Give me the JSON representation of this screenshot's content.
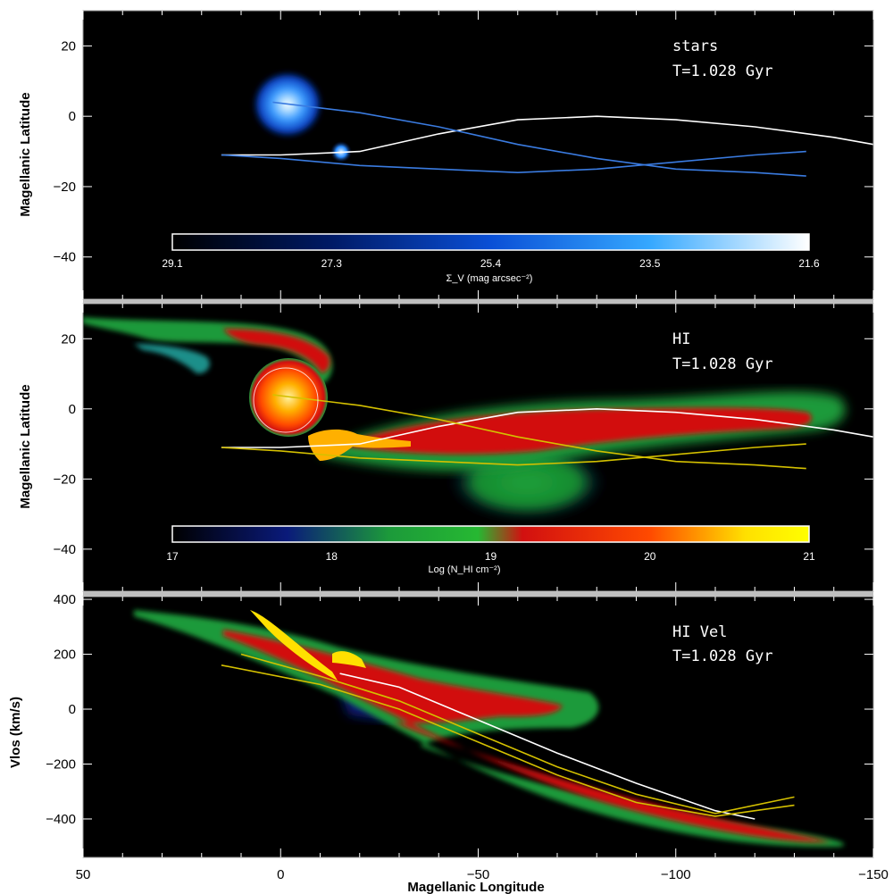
{
  "chart_data": [
    {
      "type": "scatter",
      "panel": "stars",
      "ylabel": "Magellanic Latitude",
      "xlim": [
        50,
        -150
      ],
      "ylim": [
        -52,
        30
      ],
      "y_ticks": [
        20,
        0,
        -20,
        -40
      ],
      "annotations": [
        "stars",
        "T=1.028 Gyr"
      ],
      "colorbar": {
        "label": "Σ_V (mag arcsec⁻²)",
        "ticks": [
          "29.1",
          "27.3",
          "25.4",
          "23.5",
          "21.6"
        ],
        "colors": [
          "#000000",
          "#001a66",
          "#0a4fd6",
          "#35a8ff",
          "#ffffff"
        ]
      },
      "features": [
        {
          "name": "LMC",
          "center": [
            2,
            4
          ],
          "radius_deg": 8
        },
        {
          "name": "SMC",
          "center": [
            16,
            -9
          ],
          "radius_deg": 2
        }
      ],
      "orbits": [
        {
          "color": "#ffffff",
          "x": [
            15,
            0,
            -20,
            -40,
            -60,
            -80,
            -100,
            -120,
            -140,
            -150
          ],
          "y": [
            -11,
            -11,
            -10,
            -5,
            -1,
            0,
            -1,
            -3,
            -6,
            -8
          ]
        },
        {
          "color": "#3a7be0",
          "x": [
            2,
            -20,
            -40,
            -60,
            -80,
            -100,
            -120,
            -133
          ],
          "y": [
            4,
            1,
            -3,
            -8,
            -12,
            -15,
            -16,
            -17
          ]
        },
        {
          "color": "#3a7be0",
          "x": [
            15,
            0,
            -20,
            -40,
            -60,
            -80,
            -100,
            -120,
            -133
          ],
          "y": [
            -11,
            -12,
            -14,
            -15,
            -16,
            -15,
            -13,
            -11,
            -10
          ]
        }
      ]
    },
    {
      "type": "heatmap",
      "panel": "HI",
      "ylabel": "Magellanic Latitude",
      "xlim": [
        50,
        -150
      ],
      "ylim": [
        -52,
        30
      ],
      "y_ticks": [
        20,
        0,
        -20,
        -40
      ],
      "annotations": [
        "HI",
        "T=1.028 Gyr"
      ],
      "colorbar": {
        "label": "Log (N_HI cm⁻²)",
        "ticks": [
          "17",
          "18",
          "19",
          "20",
          "21"
        ],
        "colors": [
          "#000000",
          "#0a1a7a",
          "#1c9a3a",
          "#26b832",
          "#d21010",
          "#ff4a00",
          "#ffe000",
          "#ffff00"
        ]
      },
      "features": [
        {
          "name": "LMC",
          "center": [
            2,
            4
          ],
          "radius_deg": 8
        },
        {
          "name": "Magellanic Stream",
          "x_range": [
            -10,
            -140
          ],
          "y_center": -5
        },
        {
          "name": "Leading Arm",
          "x_range": [
            40,
            20
          ],
          "y_center": 20
        }
      ],
      "orbits": [
        {
          "color": "#ffffff",
          "x": [
            15,
            0,
            -20,
            -40,
            -60,
            -80,
            -100,
            -120,
            -140,
            -150
          ],
          "y": [
            -11,
            -11,
            -10,
            -5,
            -1,
            0,
            -1,
            -3,
            -6,
            -8
          ]
        },
        {
          "color": "#d4c000",
          "x": [
            2,
            -20,
            -40,
            -60,
            -80,
            -100,
            -120,
            -133
          ],
          "y": [
            4,
            1,
            -3,
            -8,
            -12,
            -15,
            -16,
            -17
          ]
        },
        {
          "color": "#d4c000",
          "x": [
            15,
            0,
            -20,
            -40,
            -60,
            -80,
            -100,
            -120,
            -133
          ],
          "y": [
            -11,
            -12,
            -14,
            -15,
            -16,
            -15,
            -13,
            -11,
            -10
          ]
        }
      ]
    },
    {
      "type": "heatmap",
      "panel": "HI Vel",
      "ylabel": "Vlos (km/s)",
      "xlabel": "Magellanic Longitude",
      "xlim": [
        50,
        -150
      ],
      "ylim": [
        -540,
        410
      ],
      "x_ticks": [
        50,
        0,
        -50,
        -100,
        -150
      ],
      "x_tick_labels": [
        "50",
        "0",
        "−50",
        "−100",
        "−150"
      ],
      "y_ticks": [
        400,
        200,
        0,
        -200,
        -400
      ],
      "annotations": [
        "HI Vel",
        "T=1.028 Gyr"
      ],
      "orbits": [
        {
          "color": "#ffffff",
          "x": [
            -15,
            -30,
            -50,
            -70,
            -90,
            -110,
            -120
          ],
          "y": [
            130,
            80,
            -40,
            -160,
            -270,
            -370,
            -400
          ]
        },
        {
          "color": "#d4c000",
          "x": [
            10,
            -10,
            -30,
            -50,
            -70,
            -90,
            -110,
            -130
          ],
          "y": [
            200,
            120,
            30,
            -90,
            -210,
            -310,
            -380,
            -320
          ]
        },
        {
          "color": "#d4c000",
          "x": [
            15,
            -10,
            -30,
            -50,
            -70,
            -90,
            -110,
            -130
          ],
          "y": [
            160,
            90,
            0,
            -120,
            -240,
            -340,
            -390,
            -350
          ]
        }
      ]
    }
  ]
}
